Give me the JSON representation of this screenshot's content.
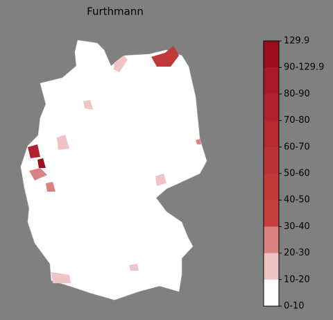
{
  "title": "Furthmann",
  "legend": {
    "labels": [
      "129.9",
      "90-129.9",
      "80-90",
      "70-80",
      "60-70",
      "50-60",
      "40-50",
      "30-40",
      "20-30",
      "10-20",
      "0-10"
    ],
    "colors": [
      "#9b0e1e",
      "#a8182a",
      "#b02230",
      "#b62a34",
      "#bb3236",
      "#c03a3a",
      "#c4403e",
      "#d98282",
      "#f0c4c4",
      "#ffffff"
    ]
  }
}
